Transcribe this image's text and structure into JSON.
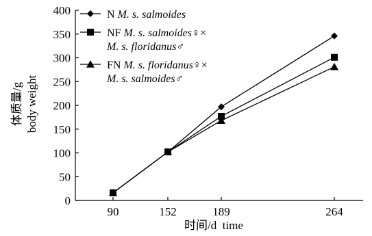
{
  "chart_data": {
    "type": "line",
    "x_type": "category",
    "categories": [
      "90",
      "152",
      "189",
      "264"
    ],
    "ylabel": "体质量/g",
    "ylabel_en": "body weight",
    "xlabel": "时间/d  time",
    "ylim": [
      0,
      400
    ],
    "yticks": [
      "0",
      "50",
      "100",
      "150",
      "200",
      "250",
      "300",
      "350",
      "400"
    ],
    "grid": false,
    "legend_position": "top-left",
    "series": [
      {
        "marker": "diamond",
        "legend": [
          [
            {
              "t": "N ",
              "i": false
            },
            {
              "t": "M. s. salmoides",
              "i": true
            }
          ]
        ],
        "values": [
          16,
          102,
          197,
          346
        ]
      },
      {
        "marker": "square",
        "legend": [
          [
            {
              "t": "NF ",
              "i": false
            },
            {
              "t": "M. s. salmoides",
              "i": true
            },
            {
              "t": "♀×",
              "i": false
            }
          ],
          [
            {
              "t": "M. s. floridanus",
              "i": true
            },
            {
              "t": "♂",
              "i": false
            }
          ]
        ],
        "values": [
          16,
          102,
          177,
          301
        ]
      },
      {
        "marker": "triangle",
        "legend": [
          [
            {
              "t": "FN ",
              "i": false
            },
            {
              "t": "M. s. floridanus",
              "i": true
            },
            {
              "t": "♀×",
              "i": false
            }
          ],
          [
            {
              "t": "M. s. salmoides",
              "i": true
            },
            {
              "t": "♂",
              "i": false
            }
          ]
        ],
        "values": [
          16,
          102,
          168,
          281
        ]
      }
    ]
  }
}
